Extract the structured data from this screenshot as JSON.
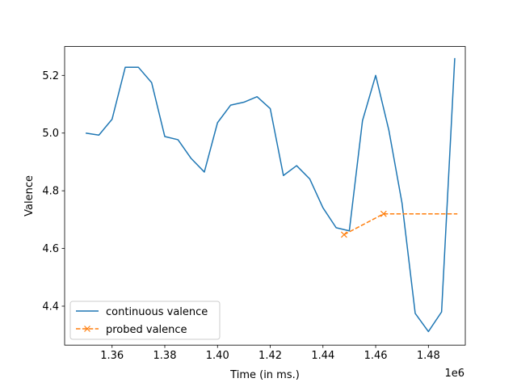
{
  "chart_data": {
    "type": "line",
    "xlabel": "Time (in ms.)",
    "ylabel": "Valence",
    "x_offset_label": "1e6",
    "xlim": [
      1342000,
      1494000
    ],
    "ylim": [
      4.265,
      5.3
    ],
    "x_ticks": [
      1360000,
      1380000,
      1400000,
      1420000,
      1440000,
      1460000,
      1480000
    ],
    "x_tick_labels": [
      "1.36",
      "1.38",
      "1.40",
      "1.42",
      "1.44",
      "1.46",
      "1.48"
    ],
    "y_ticks": [
      4.4,
      4.6,
      4.8,
      5.0,
      5.2
    ],
    "y_tick_labels": [
      "4.4",
      "4.6",
      "4.8",
      "5.0",
      "5.2"
    ],
    "grid": false,
    "legend_position": "lower-left",
    "series": [
      {
        "name": "continuous valence",
        "color": "#1f77b4",
        "style": "solid",
        "marker": "none",
        "x": [
          1350000,
          1355000,
          1360000,
          1365000,
          1370000,
          1375000,
          1380000,
          1385000,
          1390000,
          1395000,
          1400000,
          1405000,
          1410000,
          1415000,
          1420000,
          1425000,
          1430000,
          1435000,
          1440000,
          1445000,
          1450000,
          1455000,
          1460000,
          1465000,
          1470000,
          1475000,
          1480000,
          1485000,
          1490000
        ],
        "values": [
          5.0,
          4.993,
          5.048,
          5.228,
          5.228,
          5.175,
          4.988,
          4.977,
          4.912,
          4.865,
          5.036,
          5.097,
          5.107,
          5.126,
          5.085,
          4.853,
          4.887,
          4.841,
          4.741,
          4.672,
          4.661,
          5.043,
          5.2,
          5.01,
          4.757,
          4.375,
          4.312,
          4.38,
          5.26
        ]
      },
      {
        "name": "probed valence",
        "color": "#ff7f0e",
        "style": "dashed",
        "marker": "x",
        "x": [
          1448000,
          1463000,
          1491000
        ],
        "values": [
          4.648,
          4.72,
          4.72
        ],
        "marker_mask": [
          true,
          true,
          false
        ]
      }
    ]
  }
}
